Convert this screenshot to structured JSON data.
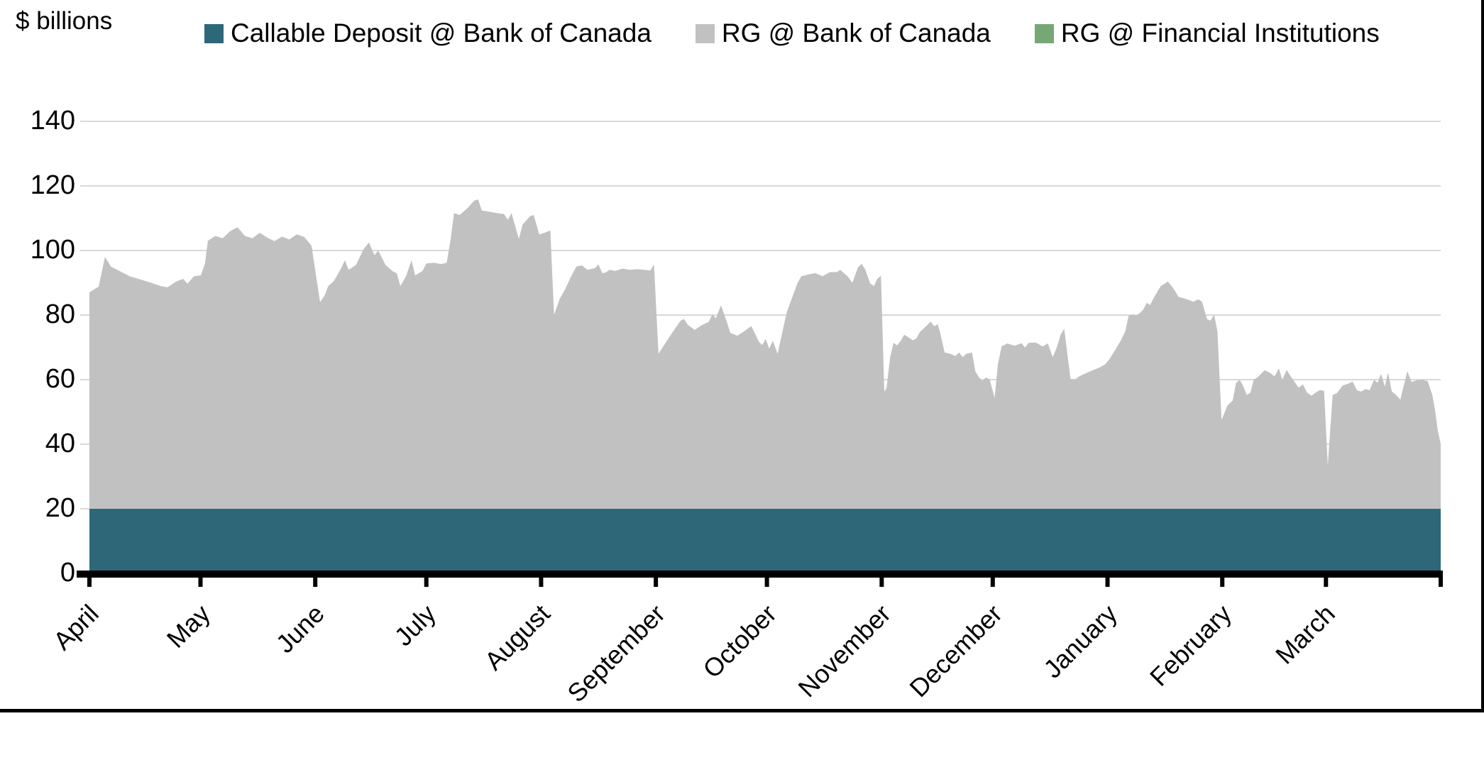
{
  "unit_label": "$ billions",
  "chart_data": {
    "type": "area",
    "stacked": true,
    "unit_label": "$ billions",
    "grid": true,
    "legend_position": "top",
    "background": "#ffffff",
    "gridline_color": "#d9d9d9",
    "axis_color": "#000000",
    "y_axis": {
      "min": 0,
      "max": 140,
      "tick_step": 20,
      "ticks": [
        0,
        20,
        40,
        60,
        80,
        100,
        120,
        140
      ]
    },
    "x_axis": {
      "month_labels": [
        "April",
        "May",
        "June",
        "July",
        "August",
        "September",
        "October",
        "November",
        "December",
        "January",
        "February",
        "March"
      ],
      "month_start_days": [
        0,
        30,
        61,
        91,
        122,
        153,
        183,
        214,
        244,
        275,
        306,
        334
      ],
      "total_days": 365,
      "end_tick_day": 365
    },
    "series": [
      {
        "name": "Callable Deposit @ Bank of Canada",
        "color": "#2e6878",
        "kind": "constant",
        "value": 20,
        "visible": true
      },
      {
        "name": "RG @ Bank of Canada",
        "color": "#c1c1c1",
        "kind": "points",
        "visible": true,
        "points_note": "pairs of [day since April 1, value in $ billions]; plotted stacked on top of the 20 constant",
        "points": [
          [
            0,
            67
          ],
          [
            1.3,
            68
          ],
          [
            2.5,
            68.8
          ],
          [
            4.2,
            78
          ],
          [
            5.8,
            75
          ],
          [
            8.4,
            73.5
          ],
          [
            10.9,
            72
          ],
          [
            13.8,
            71
          ],
          [
            16.7,
            70
          ],
          [
            19.2,
            69
          ],
          [
            21.1,
            68.6
          ],
          [
            23.4,
            70.4
          ],
          [
            25.3,
            71.2
          ],
          [
            26.5,
            69.7
          ],
          [
            28.2,
            72
          ],
          [
            30.1,
            72.3
          ],
          [
            31.2,
            76
          ],
          [
            32,
            83
          ],
          [
            34,
            84.5
          ],
          [
            36,
            83.8
          ],
          [
            38,
            86
          ],
          [
            40,
            87.2
          ],
          [
            42,
            84.5
          ],
          [
            44,
            83.8
          ],
          [
            46,
            85.5
          ],
          [
            48,
            84
          ],
          [
            50,
            82.9
          ],
          [
            52,
            84.3
          ],
          [
            54,
            83.4
          ],
          [
            56,
            85
          ],
          [
            58,
            84.2
          ],
          [
            60,
            81.5
          ],
          [
            61.5,
            70
          ],
          [
            62.3,
            64
          ],
          [
            63.5,
            66
          ],
          [
            64.5,
            69
          ],
          [
            66,
            70.5
          ],
          [
            68,
            74.5
          ],
          [
            69,
            77
          ],
          [
            70,
            74
          ],
          [
            72,
            75.5
          ],
          [
            74,
            80.3
          ],
          [
            75.5,
            82.5
          ],
          [
            77,
            78.5
          ],
          [
            78,
            80
          ],
          [
            80,
            75.5
          ],
          [
            82,
            73.5
          ],
          [
            83,
            73
          ],
          [
            84,
            69
          ],
          [
            85.5,
            72
          ],
          [
            87,
            77
          ],
          [
            88,
            72.3
          ],
          [
            90,
            73.7
          ],
          [
            91,
            76
          ],
          [
            93,
            76.2
          ],
          [
            95,
            75.8
          ],
          [
            96.5,
            76.2
          ],
          [
            97.5,
            83
          ],
          [
            98.5,
            91.6
          ],
          [
            100,
            91
          ],
          [
            102,
            93
          ],
          [
            104,
            95.5
          ],
          [
            105,
            95.8
          ],
          [
            106,
            92.4
          ],
          [
            108,
            92
          ],
          [
            110,
            91.6
          ],
          [
            112,
            91.3
          ],
          [
            113,
            89.5
          ],
          [
            114,
            91.6
          ],
          [
            116,
            83.6
          ],
          [
            117,
            88
          ],
          [
            119,
            90.6
          ],
          [
            120,
            91
          ],
          [
            121.5,
            85
          ],
          [
            123,
            85.5
          ],
          [
            124.5,
            86.2
          ],
          [
            125.5,
            60
          ],
          [
            127,
            65
          ],
          [
            128.5,
            68
          ],
          [
            130,
            71.7
          ],
          [
            131.5,
            75
          ],
          [
            133,
            75.4
          ],
          [
            134.5,
            74
          ],
          [
            136.5,
            74.5
          ],
          [
            137.5,
            75.7
          ],
          [
            138.5,
            73
          ],
          [
            139.5,
            73.2
          ],
          [
            140.5,
            74
          ],
          [
            142,
            73.7
          ],
          [
            144,
            74.4
          ],
          [
            146,
            74
          ],
          [
            148,
            74.2
          ],
          [
            150,
            74
          ],
          [
            151.5,
            73.8
          ],
          [
            152.5,
            75.7
          ],
          [
            153.7,
            48
          ],
          [
            155.8,
            51.7
          ],
          [
            157.7,
            55
          ],
          [
            159.7,
            58.3
          ],
          [
            160.6,
            58.8
          ],
          [
            161.6,
            57
          ],
          [
            163.5,
            55.4
          ],
          [
            165.4,
            56.9
          ],
          [
            167.3,
            57.9
          ],
          [
            168.3,
            60.3
          ],
          [
            169.2,
            59
          ],
          [
            170.6,
            63
          ],
          [
            172,
            58.5
          ],
          [
            173.1,
            54.5
          ],
          [
            175,
            53.6
          ],
          [
            176.9,
            55
          ],
          [
            178.8,
            56.6
          ],
          [
            180.8,
            51.8
          ],
          [
            181.7,
            50.7
          ],
          [
            182.7,
            52.6
          ],
          [
            183.6,
            49.6
          ],
          [
            184.6,
            52
          ],
          [
            185.9,
            48
          ],
          [
            187.5,
            56.5
          ],
          [
            188.4,
            61
          ],
          [
            190,
            66
          ],
          [
            191.3,
            70
          ],
          [
            192.3,
            72
          ],
          [
            194.2,
            72.6
          ],
          [
            196.1,
            73
          ],
          [
            198,
            72
          ],
          [
            200,
            73.3
          ],
          [
            201.9,
            73.3
          ],
          [
            202.8,
            74
          ],
          [
            204.8,
            72
          ],
          [
            206.1,
            70
          ],
          [
            207.6,
            74.8
          ],
          [
            208.6,
            75.9
          ],
          [
            209.6,
            74
          ],
          [
            210.9,
            69.8
          ],
          [
            211.9,
            69
          ],
          [
            212.8,
            71.2
          ],
          [
            213.8,
            72.2
          ],
          [
            214.7,
            36.3
          ],
          [
            215.3,
            37.4
          ],
          [
            216.3,
            47
          ],
          [
            217.2,
            51.4
          ],
          [
            218.2,
            50.6
          ],
          [
            219.2,
            52.1
          ],
          [
            220.1,
            53.9
          ],
          [
            221.1,
            53.2
          ],
          [
            222.4,
            52.2
          ],
          [
            223.4,
            52.8
          ],
          [
            224.3,
            54.7
          ],
          [
            225.3,
            55.8
          ],
          [
            226.2,
            56.8
          ],
          [
            227.2,
            58
          ],
          [
            228.2,
            56.5
          ],
          [
            229.1,
            57.2
          ],
          [
            229.7,
            55
          ],
          [
            231,
            48.4
          ],
          [
            232.6,
            48
          ],
          [
            233.9,
            47.3
          ],
          [
            234.9,
            48.4
          ],
          [
            235.9,
            47
          ],
          [
            236.8,
            48
          ],
          [
            238.4,
            48.4
          ],
          [
            239.3,
            42.6
          ],
          [
            240.3,
            40.7
          ],
          [
            241.2,
            39.6
          ],
          [
            242.2,
            40.7
          ],
          [
            243.2,
            40
          ],
          [
            244.5,
            34.3
          ],
          [
            245.4,
            44.8
          ],
          [
            246.4,
            50.3
          ],
          [
            247.9,
            51.2
          ],
          [
            249.9,
            50.5
          ],
          [
            251.8,
            51.3
          ],
          [
            252.7,
            49.9
          ],
          [
            253.7,
            51.4
          ],
          [
            255.6,
            51.5
          ],
          [
            257.5,
            50.3
          ],
          [
            258.9,
            51.2
          ],
          [
            260.2,
            47
          ],
          [
            261.4,
            50.3
          ],
          [
            262.3,
            53.9
          ],
          [
            263.3,
            55.8
          ],
          [
            264,
            49.5
          ],
          [
            265,
            40.2
          ],
          [
            266.1,
            40
          ],
          [
            267.5,
            41.1
          ],
          [
            269,
            41.9
          ],
          [
            271,
            42.9
          ],
          [
            272.9,
            43.8
          ],
          [
            274.4,
            44.8
          ],
          [
            275.6,
            46.5
          ],
          [
            276.7,
            48.5
          ],
          [
            278.6,
            52.1
          ],
          [
            279.8,
            55
          ],
          [
            280.7,
            59.8
          ],
          [
            281.7,
            60.1
          ],
          [
            282.7,
            59.8
          ],
          [
            283.6,
            60.5
          ],
          [
            284.6,
            61.6
          ],
          [
            285.6,
            63.8
          ],
          [
            286.5,
            63.1
          ],
          [
            287.5,
            65.3
          ],
          [
            288.4,
            67.1
          ],
          [
            289.4,
            69
          ],
          [
            290.4,
            69.7
          ],
          [
            291.3,
            70.4
          ],
          [
            292.3,
            69
          ],
          [
            293.2,
            67.5
          ],
          [
            294.2,
            65.6
          ],
          [
            295.5,
            65.2
          ],
          [
            296.9,
            64.7
          ],
          [
            298.2,
            64.1
          ],
          [
            299.5,
            64.9
          ],
          [
            300.5,
            64.2
          ],
          [
            301.9,
            58.7
          ],
          [
            302.8,
            58.3
          ],
          [
            303.8,
            60.1
          ],
          [
            304.7,
            55
          ],
          [
            305.8,
            27.5
          ],
          [
            307.4,
            32
          ],
          [
            308.8,
            33.5
          ],
          [
            309.7,
            38.9
          ],
          [
            310.7,
            40
          ],
          [
            311.6,
            38.2
          ],
          [
            312.6,
            35.2
          ],
          [
            313.6,
            36
          ],
          [
            314.5,
            40
          ],
          [
            315.5,
            40.7
          ],
          [
            316.5,
            41.8
          ],
          [
            317.4,
            42.9
          ],
          [
            318.8,
            42.2
          ],
          [
            320.1,
            41
          ],
          [
            321.3,
            43.5
          ],
          [
            322.2,
            40
          ],
          [
            323.4,
            43
          ],
          [
            324.5,
            41
          ],
          [
            325.7,
            39
          ],
          [
            326.6,
            37.5
          ],
          [
            327.8,
            38.5
          ],
          [
            328.9,
            36
          ],
          [
            330.1,
            35
          ],
          [
            331.2,
            36
          ],
          [
            332.4,
            36.8
          ],
          [
            333.5,
            36.5
          ],
          [
            334.5,
            13.5
          ],
          [
            335.8,
            35.2
          ],
          [
            337,
            35.9
          ],
          [
            338.5,
            38.2
          ],
          [
            340.1,
            38.8
          ],
          [
            341.2,
            39.4
          ],
          [
            342.4,
            36.7
          ],
          [
            343.5,
            36.3
          ],
          [
            344.7,
            37.1
          ],
          [
            345.8,
            36.7
          ],
          [
            347,
            40
          ],
          [
            347.9,
            39
          ],
          [
            348.9,
            41.8
          ],
          [
            349.9,
            37.9
          ],
          [
            350.8,
            42.2
          ],
          [
            351.8,
            36.3
          ],
          [
            352.9,
            35.3
          ],
          [
            354.1,
            33.8
          ],
          [
            355,
            38
          ],
          [
            356,
            42.6
          ],
          [
            357.1,
            39.3
          ],
          [
            358.5,
            39.8
          ],
          [
            360,
            40
          ],
          [
            361.5,
            39.5
          ],
          [
            362.7,
            35.4
          ],
          [
            363.4,
            31
          ],
          [
            364.2,
            24.4
          ],
          [
            365,
            20
          ]
        ]
      },
      {
        "name": "RG @ Financial Institutions",
        "color": "#76a876",
        "kind": "constant",
        "value": 0,
        "visible": false
      }
    ]
  }
}
